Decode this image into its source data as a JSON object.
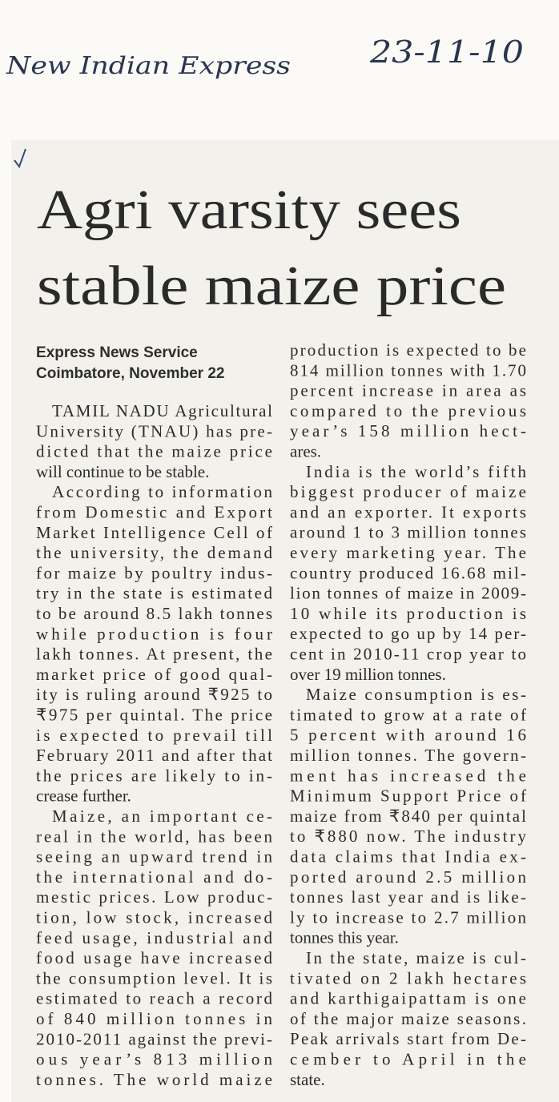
{
  "note": {
    "source": "New Indian Express",
    "date": "23-11-10"
  },
  "headline": [
    "Agri varsity sees",
    "stable maize price"
  ],
  "byline": {
    "agency": "Express News Service",
    "dateline": "Coimbatore, November 22"
  },
  "body": {
    "columns": [
      {
        "paragraphs": [
          {
            "lines": [
              "TAMIL NADU Agricultural",
              "University (TNAU) has pre-",
              "dicted that the maize price",
              "will continue to be stable."
            ]
          },
          {
            "lines": [
              "According to information",
              "from Domestic and Export",
              "Market Intelligence Cell of",
              "the university, the demand",
              "for maize by poultry indus-",
              "try in the state is estimated",
              "to be around 8.5 lakh tonnes",
              "while production is four",
              "lakh tonnes. At present, the",
              "market price of good qual-",
              "ity is ruling around ₹925 to",
              "₹975 per quintal. The price",
              "is expected to prevail till",
              "February 2011 and after that",
              "the prices are likely to in-",
              "crease further."
            ]
          },
          {
            "lines": [
              "Maize, an important ce-",
              "real in the world, has been",
              "seeing an upward trend in",
              "the international and do-",
              "mestic prices. Low produc-",
              "tion, low stock, increased",
              "feed usage, industrial and",
              "food usage have increased",
              "the consumption level. It is",
              "estimated to reach a record",
              "of 840 million tonnes in",
              "2010-2011 against the previ-",
              "ous year’s 813 million",
              "tonnes. The world maize"
            ]
          }
        ]
      },
      {
        "paragraphs": [
          {
            "lines": [
              "production is expected to be",
              "814 million tonnes with 1.70",
              "percent increase in area as",
              "compared to the previous",
              "year’s 158 million hect-",
              "ares."
            ]
          },
          {
            "lines": [
              "India is the world’s fifth",
              "biggest producer of maize",
              "and an exporter. It exports",
              "around 1 to 3 million tonnes",
              "every marketing year. The",
              "country produced 16.68 mil-",
              "lion tonnes of maize in 2009-",
              "10 while its production is",
              "expected to go up by 14 per-",
              "cent in 2010-11 crop year to",
              "over 19 million tonnes."
            ]
          },
          {
            "lines": [
              "Maize consumption is es-",
              "timated to grow at a rate of",
              "5 percent with around 16",
              "million tonnes. The govern-",
              "ment has increased the",
              "Minimum Support Price of",
              "maize from ₹840 per quintal",
              "to ₹880 now. The industry",
              "data claims that India ex-",
              "ported around 2.5 million",
              "tonnes last year and is like-",
              "ly to increase to 2.7 million",
              "tonnes this year."
            ]
          },
          {
            "lines": [
              "In the state, maize is cul-",
              "tivated on 2 lakh hectares",
              "and karthigaipattam is one",
              "of the major maize seasons.",
              "Peak arrivals start from De-",
              "cember to April in the",
              "state."
            ]
          }
        ]
      }
    ]
  }
}
